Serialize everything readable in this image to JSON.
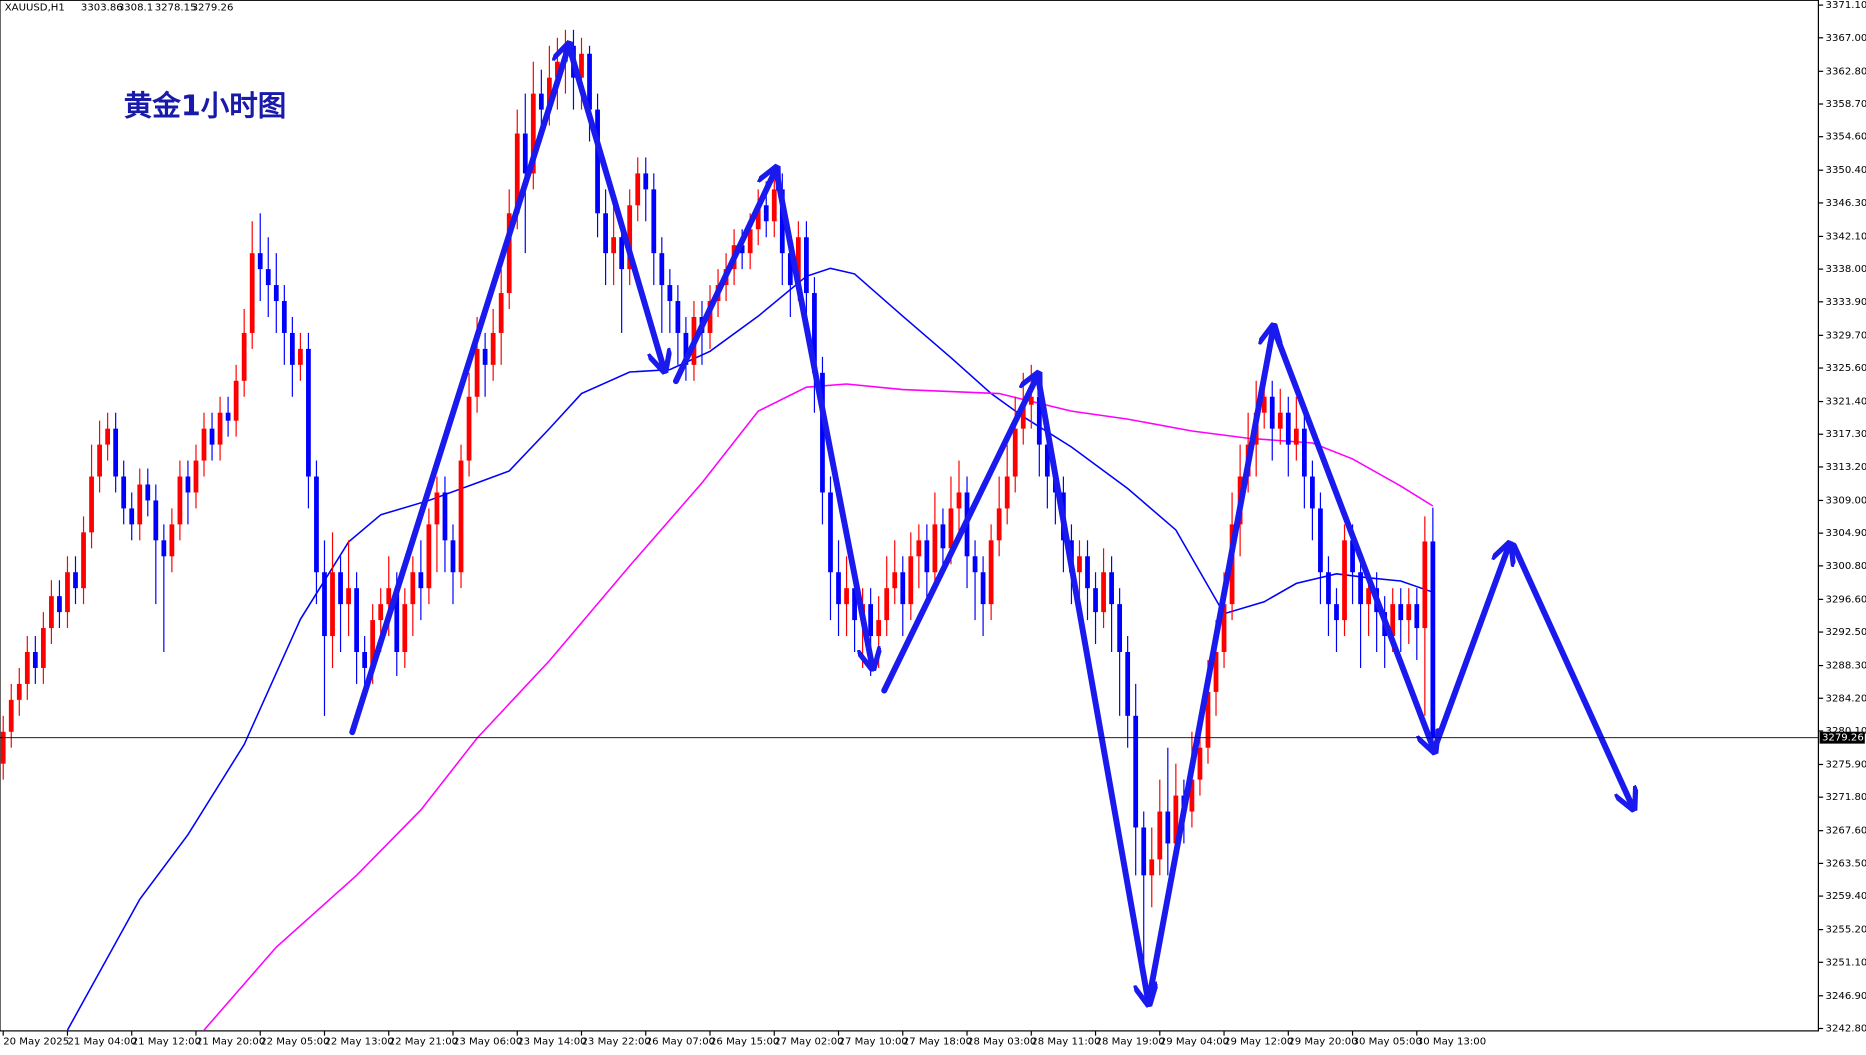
{
  "chart_data": {
    "type": "candlestick",
    "title": "XAUUSD,H1",
    "annotation": "黄金1小时图",
    "up_color": "#ff0000",
    "down_color": "#0000ff",
    "last_price": 3279.26,
    "last_price_color": "#000000",
    "xlim": [
      -0.4,
      226
    ],
    "ylim": [
      3242.5,
      3371.7
    ],
    "yticks": [
      {
        "value": 3371.1,
        "label": "3371.10"
      },
      {
        "value": 3367,
        "label": "3367.00"
      },
      {
        "value": 3362.8,
        "label": "3362.80"
      },
      {
        "value": 3358.7,
        "label": "3358.70"
      },
      {
        "value": 3354.6,
        "label": "3354.60"
      },
      {
        "value": 3350.4,
        "label": "3350.40"
      },
      {
        "value": 3346.3,
        "label": "3346.30"
      },
      {
        "value": 3342.1,
        "label": "3342.10"
      },
      {
        "value": 3338,
        "label": "3338.00"
      },
      {
        "value": 3333.9,
        "label": "3333.90"
      },
      {
        "value": 3329.7,
        "label": "3329.70"
      },
      {
        "value": 3325.6,
        "label": "3325.60"
      },
      {
        "value": 3321.4,
        "label": "3321.40"
      },
      {
        "value": 3317.3,
        "label": "3317.30"
      },
      {
        "value": 3313.2,
        "label": "3313.20"
      },
      {
        "value": 3309,
        "label": "3309.00"
      },
      {
        "value": 3304.9,
        "label": "3304.90"
      },
      {
        "value": 3300.8,
        "label": "3300.80"
      },
      {
        "value": 3296.6,
        "label": "3296.60"
      },
      {
        "value": 3292.5,
        "label": "3292.50"
      },
      {
        "value": 3288.3,
        "label": "3288.30"
      },
      {
        "value": 3284.2,
        "label": "3284.20"
      },
      {
        "value": 3280.1,
        "label": "3280.10"
      },
      {
        "value": 3275.9,
        "label": "3275.90"
      },
      {
        "value": 3271.8,
        "label": "3271.80"
      },
      {
        "value": 3267.6,
        "label": "3267.60"
      },
      {
        "value": 3263.5,
        "label": "3263.50"
      },
      {
        "value": 3259.4,
        "label": "3259.40"
      },
      {
        "value": 3255.2,
        "label": "3255.20"
      },
      {
        "value": 3251.1,
        "label": "3251.10"
      },
      {
        "value": 3246.9,
        "label": "3246.90"
      },
      {
        "value": 3242.8,
        "label": "3242.80"
      }
    ],
    "xticks": [
      {
        "value": 0,
        "label": "20 May 2025"
      },
      {
        "value": 8,
        "label": "21 May 04:00"
      },
      {
        "value": 16,
        "label": "21 May 12:00"
      },
      {
        "value": 24,
        "label": "21 May 20:00"
      },
      {
        "value": 32,
        "label": "22 May 05:00"
      },
      {
        "value": 40,
        "label": "22 May 13:00"
      },
      {
        "value": 48,
        "label": "22 May 21:00"
      },
      {
        "value": 56,
        "label": "23 May 06:00"
      },
      {
        "value": 64,
        "label": "23 May 14:00"
      },
      {
        "value": 72,
        "label": "23 May 22:00"
      },
      {
        "value": 80,
        "label": "26 May 07:00"
      },
      {
        "value": 88,
        "label": "26 May 15:00"
      },
      {
        "value": 96,
        "label": "27 May 02:00"
      },
      {
        "value": 104,
        "label": "27 May 10:00"
      },
      {
        "value": 112,
        "label": "27 May 18:00"
      },
      {
        "value": 120,
        "label": "28 May 03:00"
      },
      {
        "value": 128,
        "label": "28 May 11:00"
      },
      {
        "value": 136,
        "label": "28 May 19:00"
      },
      {
        "value": 144,
        "label": "29 May 04:00"
      },
      {
        "value": 152,
        "label": "29 May 12:00"
      },
      {
        "value": 160,
        "label": "29 May 20:00"
      },
      {
        "value": 168,
        "label": "30 May 05:00"
      },
      {
        "value": 176,
        "label": "30 May 13:00"
      }
    ],
    "candles": [
      [
        3276,
        3282,
        3274,
        3280
      ],
      [
        3280,
        3286,
        3278,
        3284
      ],
      [
        3284,
        3288,
        3282,
        3286
      ],
      [
        3286,
        3292,
        3284,
        3290
      ],
      [
        3290,
        3292,
        3286,
        3288
      ],
      [
        3288,
        3295,
        3286,
        3293
      ],
      [
        3293,
        3299,
        3291,
        3297
      ],
      [
        3297,
        3299,
        3293,
        3295
      ],
      [
        3295,
        3302,
        3293,
        3300
      ],
      [
        3300,
        3302,
        3296,
        3298
      ],
      [
        3298,
        3307,
        3296,
        3305
      ],
      [
        3305,
        3316,
        3303,
        3312
      ],
      [
        3312,
        3319,
        3310,
        3316
      ],
      [
        3316,
        3320,
        3314,
        3318
      ],
      [
        3318,
        3320,
        3310,
        3312
      ],
      [
        3312,
        3314,
        3306,
        3308
      ],
      [
        3308,
        3310,
        3304,
        3306
      ],
      [
        3306,
        3313,
        3304,
        3311
      ],
      [
        3311,
        3313,
        3307,
        3309
      ],
      [
        3309,
        3311,
        3296,
        3304
      ],
      [
        3304,
        3306,
        3290,
        3302
      ],
      [
        3302,
        3308,
        3300,
        3306
      ],
      [
        3306,
        3314,
        3304,
        3312
      ],
      [
        3312,
        3314,
        3306,
        3310
      ],
      [
        3310,
        3316,
        3308,
        3314
      ],
      [
        3314,
        3320,
        3312,
        3318
      ],
      [
        3318,
        3320,
        3314,
        3316
      ],
      [
        3316,
        3322,
        3314,
        3320
      ],
      [
        3320,
        3322,
        3317,
        3319
      ],
      [
        3319,
        3326,
        3317,
        3324
      ],
      [
        3324,
        3333,
        3322,
        3330
      ],
      [
        3330,
        3344,
        3328,
        3340
      ],
      [
        3340,
        3345,
        3334,
        3338
      ],
      [
        3338,
        3342,
        3332,
        3336
      ],
      [
        3336,
        3340,
        3330,
        3334
      ],
      [
        3334,
        3336,
        3326,
        3330
      ],
      [
        3330,
        3332,
        3322,
        3326
      ],
      [
        3326,
        3330,
        3324,
        3328
      ],
      [
        3328,
        3330,
        3308,
        3312
      ],
      [
        3312,
        3314,
        3296,
        3300
      ],
      [
        3300,
        3304,
        3282,
        3292
      ],
      [
        3292,
        3305,
        3288,
        3300
      ],
      [
        3300,
        3302,
        3290,
        3296
      ],
      [
        3296,
        3304,
        3292,
        3298
      ],
      [
        3298,
        3300,
        3286,
        3290
      ],
      [
        3290,
        3292,
        3284,
        3288
      ],
      [
        3288,
        3296,
        3286,
        3294
      ],
      [
        3294,
        3298,
        3290,
        3296
      ],
      [
        3296,
        3302,
        3292,
        3298
      ],
      [
        3298,
        3300,
        3287,
        3290
      ],
      [
        3290,
        3298,
        3288,
        3296
      ],
      [
        3296,
        3302,
        3292,
        3300
      ],
      [
        3300,
        3304,
        3294,
        3298
      ],
      [
        3298,
        3308,
        3296,
        3306
      ],
      [
        3306,
        3312,
        3300,
        3310
      ],
      [
        3310,
        3312,
        3300,
        3304
      ],
      [
        3304,
        3306,
        3296,
        3300
      ],
      [
        3300,
        3316,
        3298,
        3314
      ],
      [
        3314,
        3325,
        3312,
        3322
      ],
      [
        3322,
        3332,
        3320,
        3328
      ],
      [
        3328,
        3330,
        3322,
        3326
      ],
      [
        3326,
        3333,
        3324,
        3330
      ],
      [
        3330,
        3338,
        3326,
        3335
      ],
      [
        3335,
        3348,
        3333,
        3345
      ],
      [
        3345,
        3358,
        3343,
        3355
      ],
      [
        3355,
        3360,
        3340,
        3350
      ],
      [
        3350,
        3364,
        3348,
        3360
      ],
      [
        3360,
        3363,
        3354,
        3358
      ],
      [
        3358,
        3366,
        3356,
        3362
      ],
      [
        3362,
        3367,
        3358,
        3364
      ],
      [
        3364,
        3368,
        3360,
        3366
      ],
      [
        3366,
        3368,
        3358,
        3362
      ],
      [
        3362,
        3367,
        3358,
        3365
      ],
      [
        3365,
        3366,
        3354,
        3358
      ],
      [
        3358,
        3360,
        3342,
        3345
      ],
      [
        3345,
        3348,
        3336,
        3340
      ],
      [
        3340,
        3346,
        3336,
        3342
      ],
      [
        3342,
        3344,
        3330,
        3338
      ],
      [
        3338,
        3348,
        3336,
        3346
      ],
      [
        3346,
        3352,
        3344,
        3350
      ],
      [
        3350,
        3352,
        3344,
        3348
      ],
      [
        3348,
        3350,
        3336,
        3340
      ],
      [
        3340,
        3342,
        3330,
        3336
      ],
      [
        3336,
        3338,
        3330,
        3334
      ],
      [
        3334,
        3336,
        3326,
        3330
      ],
      [
        3330,
        3332,
        3324,
        3326
      ],
      [
        3326,
        3334,
        3324,
        3332
      ],
      [
        3332,
        3334,
        3326,
        3330
      ],
      [
        3330,
        3336,
        3328,
        3334
      ],
      [
        3334,
        3338,
        3332,
        3336
      ],
      [
        3336,
        3340,
        3334,
        3338
      ],
      [
        3338,
        3343,
        3336,
        3341
      ],
      [
        3341,
        3343,
        3338,
        3340
      ],
      [
        3340,
        3345,
        3338,
        3343
      ],
      [
        3343,
        3348,
        3341,
        3346
      ],
      [
        3346,
        3349,
        3342,
        3344
      ],
      [
        3344,
        3350,
        3342,
        3348
      ],
      [
        3348,
        3350,
        3336,
        3340
      ],
      [
        3340,
        3342,
        3332,
        3336
      ],
      [
        3336,
        3344,
        3334,
        3342
      ],
      [
        3342,
        3344,
        3330,
        3335
      ],
      [
        3335,
        3337,
        3320,
        3325
      ],
      [
        3325,
        3327,
        3306,
        3310
      ],
      [
        3310,
        3312,
        3294,
        3300
      ],
      [
        3300,
        3304,
        3292,
        3296
      ],
      [
        3296,
        3302,
        3292,
        3298
      ],
      [
        3298,
        3300,
        3290,
        3294
      ],
      [
        3294,
        3298,
        3288,
        3296
      ],
      [
        3296,
        3298,
        3287,
        3292
      ],
      [
        3292,
        3297,
        3288,
        3294
      ],
      [
        3294,
        3302,
        3292,
        3298
      ],
      [
        3298,
        3304,
        3296,
        3300
      ],
      [
        3300,
        3302,
        3292,
        3296
      ],
      [
        3296,
        3305,
        3294,
        3302
      ],
      [
        3302,
        3306,
        3298,
        3304
      ],
      [
        3304,
        3306,
        3296,
        3300
      ],
      [
        3300,
        3310,
        3298,
        3306
      ],
      [
        3306,
        3308,
        3300,
        3303
      ],
      [
        3303,
        3312,
        3301,
        3308
      ],
      [
        3308,
        3314,
        3304,
        3310
      ],
      [
        3310,
        3312,
        3298,
        3302
      ],
      [
        3302,
        3304,
        3294,
        3300
      ],
      [
        3300,
        3302,
        3292,
        3296
      ],
      [
        3296,
        3306,
        3294,
        3304
      ],
      [
        3304,
        3312,
        3302,
        3308
      ],
      [
        3308,
        3316,
        3306,
        3312
      ],
      [
        3312,
        3322,
        3310,
        3318
      ],
      [
        3318,
        3325,
        3316,
        3321
      ],
      [
        3321,
        3326,
        3318,
        3322
      ],
      [
        3322,
        3324,
        3312,
        3316
      ],
      [
        3316,
        3318,
        3308,
        3312
      ],
      [
        3312,
        3314,
        3306,
        3310
      ],
      [
        3310,
        3312,
        3300,
        3304
      ],
      [
        3304,
        3306,
        3296,
        3300
      ],
      [
        3300,
        3304,
        3296,
        3302
      ],
      [
        3302,
        3304,
        3294,
        3298
      ],
      [
        3298,
        3300,
        3291,
        3295
      ],
      [
        3295,
        3303,
        3293,
        3300
      ],
      [
        3300,
        3302,
        3290,
        3296
      ],
      [
        3296,
        3298,
        3282,
        3290
      ],
      [
        3290,
        3292,
        3278,
        3282
      ],
      [
        3282,
        3286,
        3262,
        3268
      ],
      [
        3268,
        3270,
        3248,
        3262
      ],
      [
        3262,
        3268,
        3258,
        3264
      ],
      [
        3264,
        3274,
        3262,
        3270
      ],
      [
        3270,
        3278,
        3262,
        3266
      ],
      [
        3266,
        3276,
        3264,
        3272
      ],
      [
        3272,
        3274,
        3266,
        3270
      ],
      [
        3270,
        3280,
        3268,
        3274
      ],
      [
        3274,
        3282,
        3272,
        3278
      ],
      [
        3278,
        3289,
        3276,
        3285
      ],
      [
        3285,
        3294,
        3282,
        3290
      ],
      [
        3290,
        3300,
        3288,
        3296
      ],
      [
        3296,
        3310,
        3294,
        3306
      ],
      [
        3306,
        3316,
        3302,
        3312
      ],
      [
        3312,
        3320,
        3310,
        3316
      ],
      [
        3316,
        3324,
        3312,
        3320
      ],
      [
        3320,
        3326,
        3318,
        3322
      ],
      [
        3322,
        3324,
        3314,
        3318
      ],
      [
        3318,
        3323,
        3316,
        3320
      ],
      [
        3320,
        3322,
        3312,
        3316
      ],
      [
        3316,
        3322,
        3314,
        3318
      ],
      [
        3318,
        3320,
        3308,
        3312
      ],
      [
        3312,
        3314,
        3304,
        3308
      ],
      [
        3308,
        3310,
        3296,
        3300
      ],
      [
        3300,
        3302,
        3292,
        3296
      ],
      [
        3296,
        3298,
        3290,
        3294
      ],
      [
        3294,
        3306,
        3292,
        3304
      ],
      [
        3304,
        3306,
        3296,
        3300
      ],
      [
        3300,
        3302,
        3288,
        3296
      ],
      [
        3296,
        3300,
        3292,
        3298
      ],
      [
        3298,
        3300,
        3290,
        3295
      ],
      [
        3295,
        3297,
        3288,
        3292
      ],
      [
        3292,
        3298,
        3290,
        3296
      ],
      [
        3296,
        3298,
        3290,
        3294
      ],
      [
        3294,
        3298,
        3291,
        3296
      ],
      [
        3296,
        3298,
        3289,
        3293
      ],
      [
        3293,
        3307,
        3282,
        3303.86
      ],
      [
        3303.86,
        3308.1,
        3278.15,
        3279.26
      ]
    ],
    "lines": [
      {
        "color": "#0000ff",
        "x": [
          8,
          17,
          23,
          30,
          37,
          43,
          47,
          53,
          59,
          63,
          68,
          72,
          78,
          83,
          88,
          94,
          100,
          103,
          106,
          112,
          118,
          123,
          127,
          133,
          140,
          146,
          152,
          157,
          161,
          166,
          170,
          174,
          178
        ],
        "values": [
          3242.6,
          3259.0,
          3267.1,
          3278.4,
          3294.1,
          3303.8,
          3307.2,
          3309.0,
          3311.2,
          3312.7,
          3318.0,
          3322.4,
          3325.1,
          3325.4,
          3327.7,
          3332.1,
          3337.1,
          3338.1,
          3337.4,
          3332.1,
          3326.9,
          3322.4,
          3319.5,
          3315.7,
          3310.5,
          3305.3,
          3294.8,
          3296.3,
          3298.6,
          3299.8,
          3299.3,
          3298.9,
          3297.5
        ]
      },
      {
        "color": "#ff00ff",
        "x": [
          25,
          34,
          44,
          52,
          59,
          68,
          78,
          87,
          94,
          100,
          105,
          112,
          124,
          133,
          140,
          148,
          155,
          163,
          168,
          174,
          178
        ],
        "values": [
          3242.6,
          3253.0,
          3262.0,
          3270.2,
          3279.2,
          3288.9,
          3300.8,
          3311.2,
          3320.2,
          3323.2,
          3323.6,
          3322.9,
          3322.4,
          3320.2,
          3319.2,
          3317.7,
          3316.8,
          3316.2,
          3314.2,
          3310.8,
          3308.3
        ]
      }
    ]
  }
}
